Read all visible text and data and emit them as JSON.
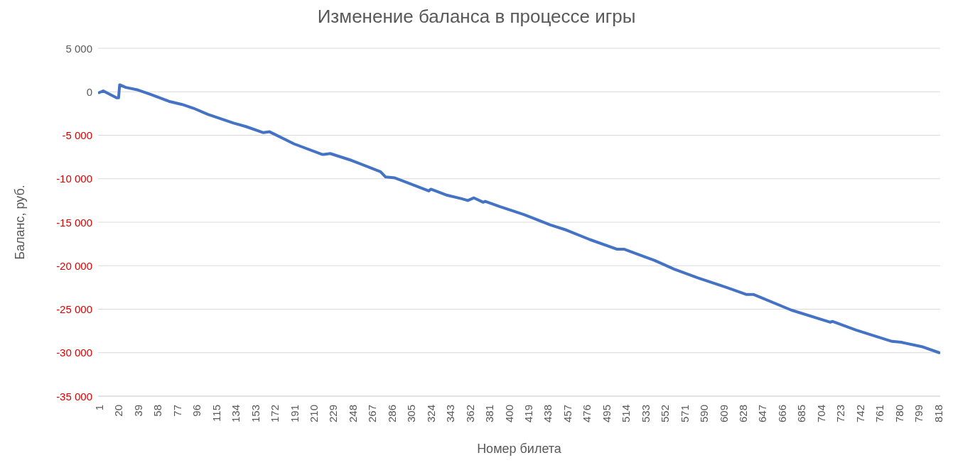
{
  "chart_data": {
    "type": "line",
    "title": "Изменение баланса в процессе игры",
    "xlabel": "Номер билета",
    "ylabel": "Баланс, руб.",
    "x": [
      1,
      5,
      18,
      20,
      21,
      27,
      39,
      51,
      69,
      83,
      93,
      107,
      132,
      144,
      161,
      167,
      191,
      218,
      220,
      226,
      247,
      275,
      280,
      289,
      322,
      324,
      340,
      354,
      360,
      366,
      375,
      377,
      391,
      414,
      423,
      440,
      456,
      479,
      505,
      512,
      526,
      542,
      561,
      584,
      612,
      631,
      638,
      675,
      713,
      715,
      738,
      773,
      782,
      802,
      819
    ],
    "series": [
      {
        "color": "#4472c4",
        "values": [
          -100,
          100,
          -700,
          -700,
          800,
          500,
          200,
          -300,
          -1100,
          -1500,
          -1900,
          -2600,
          -3600,
          -4000,
          -4700,
          -4600,
          -6000,
          -7200,
          -7200,
          -7100,
          -7900,
          -9200,
          -9800,
          -9900,
          -11400,
          -11200,
          -11900,
          -12300,
          -12500,
          -12200,
          -12700,
          -12600,
          -13200,
          -14100,
          -14500,
          -15300,
          -15900,
          -17000,
          -18100,
          -18100,
          -18700,
          -19400,
          -20400,
          -21400,
          -22500,
          -23300,
          -23300,
          -25100,
          -26500,
          -26400,
          -27400,
          -28700,
          -28800,
          -29300,
          -30000
        ]
      }
    ],
    "xlim": [
      0,
      820
    ],
    "xticks": [
      1,
      20,
      39,
      58,
      77,
      96,
      115,
      134,
      153,
      172,
      191,
      210,
      229,
      248,
      267,
      286,
      305,
      324,
      343,
      362,
      381,
      400,
      419,
      438,
      457,
      476,
      495,
      514,
      533,
      552,
      571,
      590,
      609,
      628,
      647,
      666,
      685,
      704,
      723,
      742,
      761,
      780,
      799,
      818
    ],
    "ylim": [
      -35000,
      5000
    ],
    "yticks": [
      {
        "value": 5000,
        "label": "5 000"
      },
      {
        "value": 0,
        "label": "0"
      },
      {
        "value": -5000,
        "label": "-5 000"
      },
      {
        "value": -10000,
        "label": "-10 000"
      },
      {
        "value": -15000,
        "label": "-15 000"
      },
      {
        "value": -20000,
        "label": "-20 000"
      },
      {
        "value": -25000,
        "label": "-25 000"
      },
      {
        "value": -30000,
        "label": "-30 000"
      },
      {
        "value": -35000,
        "label": "-35 000"
      }
    ],
    "grid": "y",
    "legend": false,
    "marker": "none",
    "line_style": "solid"
  }
}
